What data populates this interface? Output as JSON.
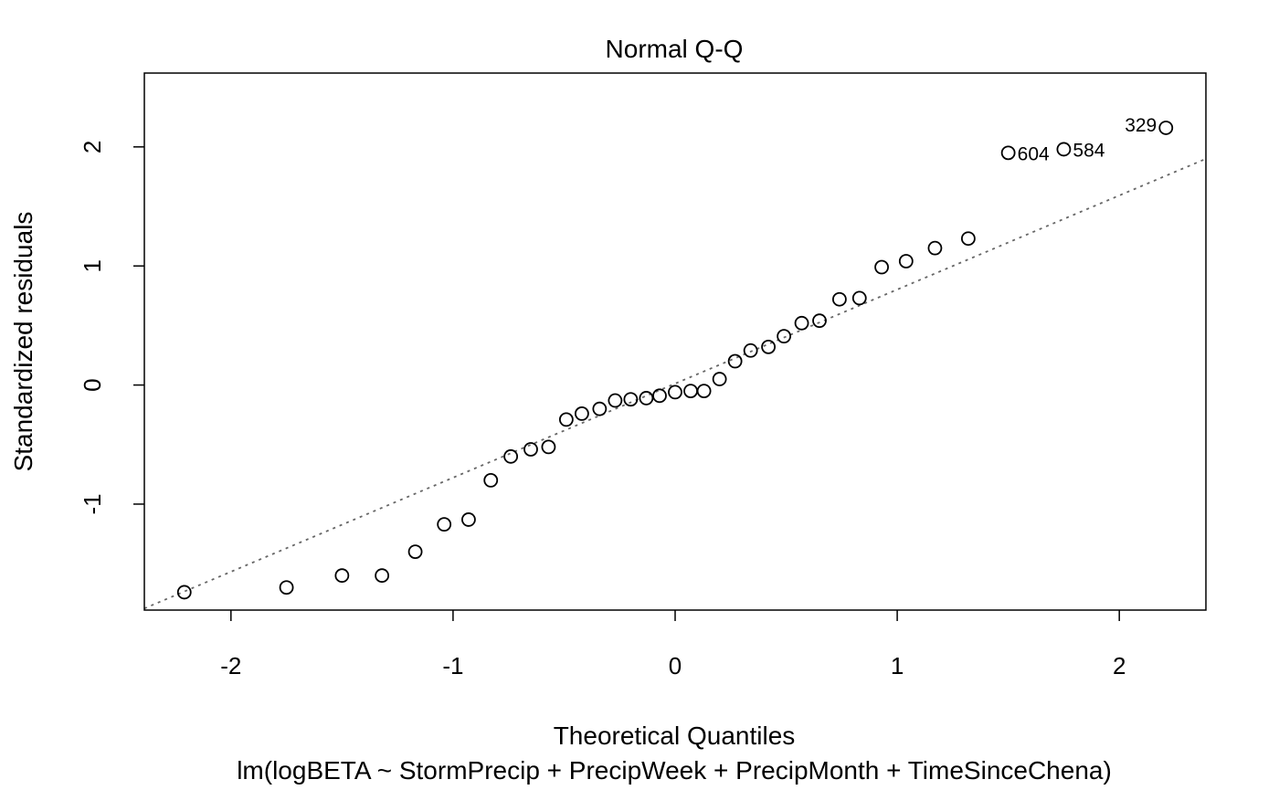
{
  "chart_data": {
    "type": "scatter",
    "title": "Normal Q-Q",
    "xlabel": "Theoretical Quantiles",
    "ylabel": "Standardized residuals",
    "subtitle": "lm(logBETA ~ StormPrecip + PrecipWeek + PrecipMonth + TimeSinceChena)",
    "xlim": [
      -2.39,
      2.39
    ],
    "ylim": [
      -1.89,
      2.62
    ],
    "x_ticks": [
      -2,
      -1,
      0,
      1,
      2
    ],
    "x_tick_labels": [
      "-2",
      "-1",
      "0",
      "1",
      "2"
    ],
    "y_ticks": [
      -1,
      0,
      1,
      2
    ],
    "y_tick_labels": [
      "-1",
      "0",
      "1",
      "2"
    ],
    "grid": false,
    "reference_line": {
      "style": "dotted",
      "color": "#666666",
      "intercept": 0.012,
      "slope": 0.79
    },
    "points": [
      {
        "x": -2.21,
        "y": -1.74
      },
      {
        "x": -1.75,
        "y": -1.7
      },
      {
        "x": -1.5,
        "y": -1.6
      },
      {
        "x": -1.32,
        "y": -1.6
      },
      {
        "x": -1.17,
        "y": -1.4
      },
      {
        "x": -1.04,
        "y": -1.17
      },
      {
        "x": -0.93,
        "y": -1.13
      },
      {
        "x": -0.83,
        "y": -0.8
      },
      {
        "x": -0.74,
        "y": -0.6
      },
      {
        "x": -0.65,
        "y": -0.54
      },
      {
        "x": -0.57,
        "y": -0.52
      },
      {
        "x": -0.49,
        "y": -0.29
      },
      {
        "x": -0.42,
        "y": -0.24
      },
      {
        "x": -0.34,
        "y": -0.2
      },
      {
        "x": -0.27,
        "y": -0.13
      },
      {
        "x": -0.2,
        "y": -0.12
      },
      {
        "x": -0.13,
        "y": -0.11
      },
      {
        "x": -0.07,
        "y": -0.09
      },
      {
        "x": 0.0,
        "y": -0.06
      },
      {
        "x": 0.07,
        "y": -0.05
      },
      {
        "x": 0.13,
        "y": -0.05
      },
      {
        "x": 0.2,
        "y": 0.05
      },
      {
        "x": 0.27,
        "y": 0.2
      },
      {
        "x": 0.34,
        "y": 0.29
      },
      {
        "x": 0.42,
        "y": 0.32
      },
      {
        "x": 0.49,
        "y": 0.41
      },
      {
        "x": 0.57,
        "y": 0.52
      },
      {
        "x": 0.65,
        "y": 0.54
      },
      {
        "x": 0.74,
        "y": 0.72
      },
      {
        "x": 0.83,
        "y": 0.73
      },
      {
        "x": 0.93,
        "y": 0.99
      },
      {
        "x": 1.04,
        "y": 1.04
      },
      {
        "x": 1.17,
        "y": 1.15
      },
      {
        "x": 1.32,
        "y": 1.23
      },
      {
        "x": 1.5,
        "y": 1.95,
        "label": "604"
      },
      {
        "x": 1.75,
        "y": 1.98,
        "label": "584"
      },
      {
        "x": 2.21,
        "y": 2.16,
        "label": "329"
      }
    ]
  }
}
